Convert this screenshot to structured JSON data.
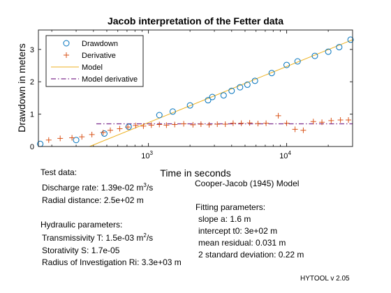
{
  "chart_data": {
    "type": "scatter",
    "title": "Jacob interpretation of the Fetter data",
    "xlabel": "Time in seconds",
    "ylabel": "Drawdown in meters",
    "xscale": "log",
    "xlim": [
      160,
      30000
    ],
    "ylim": [
      0,
      3.6
    ],
    "grid": false,
    "legend_position": "top-left",
    "x_ticks": [
      {
        "value": 1000,
        "base": "10",
        "exp": "3"
      },
      {
        "value": 10000,
        "base": "10",
        "exp": "4"
      }
    ],
    "y_ticks": [
      {
        "value": 0,
        "label": "0"
      },
      {
        "value": 1,
        "label": "1"
      },
      {
        "value": 2,
        "label": "2"
      },
      {
        "value": 3,
        "label": "3"
      }
    ],
    "series": [
      {
        "name": "Drawdown",
        "kind": "points",
        "marker": "circle",
        "color": "#0072BD",
        "x": [
          165,
          300,
          480,
          720,
          1200,
          1500,
          2000,
          2700,
          2900,
          3500,
          4000,
          4600,
          5200,
          5900,
          7800,
          10000,
          12000,
          16000,
          20000,
          24000,
          29000
        ],
        "y": [
          0.08,
          0.2,
          0.4,
          0.61,
          0.97,
          1.08,
          1.27,
          1.43,
          1.53,
          1.58,
          1.72,
          1.83,
          1.91,
          2.03,
          2.27,
          2.52,
          2.63,
          2.8,
          2.93,
          3.07,
          3.3
        ]
      },
      {
        "name": "Derivative",
        "kind": "points",
        "marker": "plus",
        "color": "#D95319",
        "x": [
          190,
          230,
          280,
          330,
          390,
          470,
          530,
          620,
          710,
          810,
          920,
          1050,
          1200,
          1350,
          1550,
          1800,
          2100,
          2400,
          2750,
          3150,
          3600,
          4100,
          4700,
          5400,
          6200,
          7100,
          8700,
          10000,
          11500,
          13200,
          15600,
          18000,
          21000,
          24500,
          28000
        ],
        "y": [
          0.2,
          0.25,
          0.27,
          0.3,
          0.37,
          0.43,
          0.5,
          0.55,
          0.6,
          0.65,
          0.63,
          0.66,
          0.68,
          0.66,
          0.68,
          0.7,
          0.67,
          0.69,
          0.67,
          0.69,
          0.69,
          0.72,
          0.72,
          0.73,
          0.71,
          0.72,
          0.95,
          0.72,
          0.53,
          0.5,
          0.77,
          0.75,
          0.8,
          0.82,
          0.82
        ]
      },
      {
        "name": "Model",
        "kind": "line",
        "style": "solid",
        "color": "#EDB120",
        "x": [
          375,
          30000
        ],
        "y": [
          0,
          3.3
        ]
      },
      {
        "name": "Model derivative",
        "kind": "line",
        "style": "dashdot",
        "color": "#7E2F8E",
        "x": [
          420,
          30000
        ],
        "y": [
          0.7,
          0.7
        ]
      }
    ]
  },
  "test_data": {
    "heading": "Test data:",
    "discharge_label": "Discharge rate: 1.39e-02 m",
    "discharge_exp": "3",
    "discharge_unit": "/s",
    "radial_distance": "Radial distance: 2.5e+02 m"
  },
  "hydraulic": {
    "heading": "Hydraulic parameters:",
    "transmissivity_label": "Transmissivity T: 1.5e-03 m",
    "transmissivity_exp": "2",
    "transmissivity_unit": "/s",
    "storativity": "Storativity S: 1.7e-05",
    "radius": "Radius of Investigation Ri: 3.3e+03 m"
  },
  "model": {
    "name": "Cooper-Jacob (1945) Model",
    "fitting_heading": "Fitting parameters:",
    "slope": "slope a: 1.6 m",
    "intercept": "intercept t0: 3e+02 m",
    "mean_residual": "mean residual: 0.031 m",
    "std_dev": "2 standard deviation: 0.22 m"
  },
  "version": "HYTOOL v 2.05"
}
